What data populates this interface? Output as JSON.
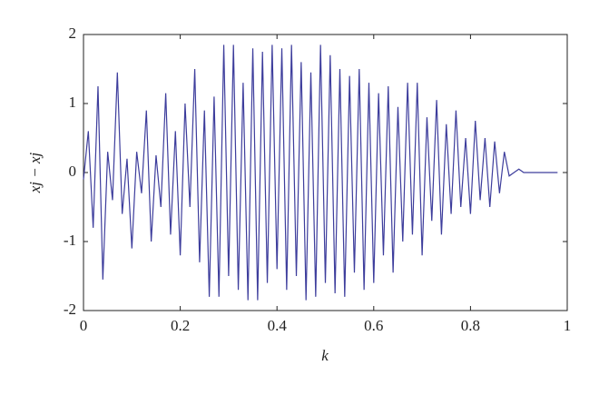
{
  "chart_data": {
    "type": "line",
    "xlabel": "k",
    "ylabel": "xj − xj",
    "x": [
      0,
      0.01,
      0.02,
      0.03,
      0.04,
      0.05,
      0.06,
      0.07,
      0.08,
      0.09,
      0.1,
      0.11,
      0.12,
      0.13,
      0.14,
      0.15,
      0.16,
      0.17,
      0.18,
      0.19,
      0.2,
      0.21,
      0.22,
      0.23,
      0.24,
      0.25,
      0.26,
      0.27,
      0.28,
      0.29,
      0.3,
      0.31,
      0.32,
      0.33,
      0.34,
      0.35,
      0.36,
      0.37,
      0.38,
      0.39,
      0.4,
      0.41,
      0.42,
      0.43,
      0.44,
      0.45,
      0.46,
      0.47,
      0.48,
      0.49,
      0.5,
      0.51,
      0.52,
      0.53,
      0.54,
      0.55,
      0.56,
      0.57,
      0.58,
      0.59,
      0.6,
      0.61,
      0.62,
      0.63,
      0.64,
      0.65,
      0.66,
      0.67,
      0.68,
      0.69,
      0.7,
      0.71,
      0.72,
      0.73,
      0.74,
      0.75,
      0.76,
      0.77,
      0.78,
      0.79,
      0.8,
      0.81,
      0.82,
      0.83,
      0.84,
      0.85,
      0.86,
      0.87,
      0.88,
      0.89,
      0.9,
      0.91,
      0.92,
      0.93,
      0.94,
      0.95,
      0.96,
      0.97,
      0.98
    ],
    "series": [
      {
        "color": "#3d3d9c",
        "values": [
          -0.1,
          0.6,
          -0.8,
          1.25,
          -1.55,
          0.3,
          -0.4,
          1.45,
          -0.6,
          0.2,
          -1.1,
          0.3,
          -0.3,
          0.9,
          -1.0,
          0.25,
          -0.5,
          1.15,
          -0.9,
          0.6,
          -1.2,
          1.0,
          -0.5,
          1.5,
          -1.3,
          0.9,
          -1.8,
          1.1,
          -1.8,
          1.85,
          -1.5,
          1.85,
          -1.7,
          1.3,
          -1.85,
          1.8,
          -1.85,
          1.75,
          -1.6,
          1.85,
          -1.4,
          1.8,
          -1.7,
          1.85,
          -1.5,
          1.6,
          -1.85,
          1.45,
          -1.8,
          1.85,
          -1.6,
          1.7,
          -1.75,
          1.5,
          -1.8,
          1.4,
          -1.45,
          1.5,
          -1.7,
          1.3,
          -1.6,
          1.15,
          -1.2,
          1.25,
          -1.45,
          0.95,
          -1.0,
          1.3,
          -0.9,
          1.3,
          -1.2,
          0.8,
          -0.7,
          1.05,
          -0.9,
          0.7,
          -0.6,
          0.9,
          -0.5,
          0.5,
          -0.6,
          0.75,
          -0.4,
          0.5,
          -0.5,
          0.45,
          -0.3,
          0.3,
          -0.05,
          0,
          0.05,
          0,
          0,
          0,
          0,
          0,
          0,
          0,
          0
        ]
      }
    ],
    "xlim": [
      0,
      1
    ],
    "xticks": [
      0,
      0.2,
      0.4,
      0.6,
      0.8,
      1
    ],
    "ylim": [
      -2,
      2
    ],
    "yticks": [
      -2,
      -1,
      0,
      1,
      2
    ]
  }
}
